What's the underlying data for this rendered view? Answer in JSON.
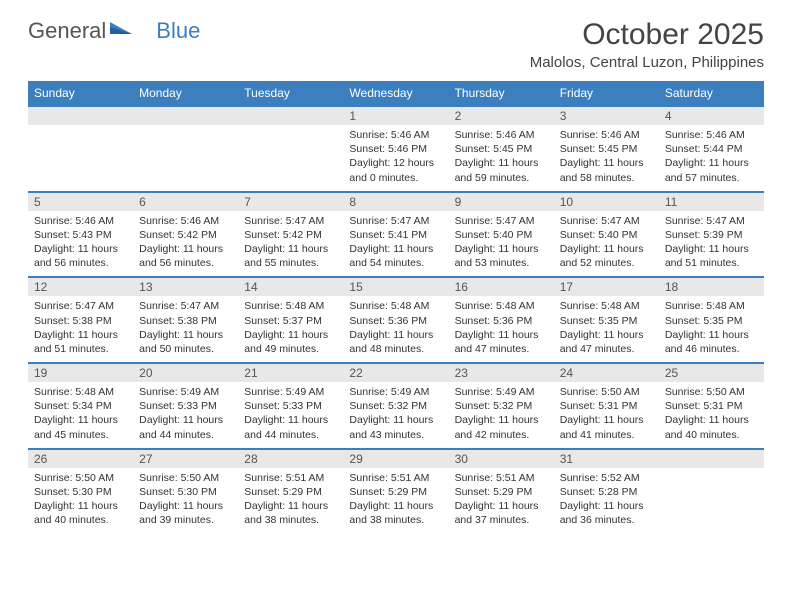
{
  "brand": {
    "word1": "General",
    "word2": "Blue"
  },
  "title": "October 2025",
  "location": "Malolos, Central Luzon, Philippines",
  "colors": {
    "accent": "#3b7fbf",
    "header_text": "#ffffff",
    "daynum_bg": "#e8e8e8",
    "text": "#333333",
    "muted": "#555555",
    "background": "#ffffff"
  },
  "daynames": [
    "Sunday",
    "Monday",
    "Tuesday",
    "Wednesday",
    "Thursday",
    "Friday",
    "Saturday"
  ],
  "weeks": [
    [
      {
        "n": "",
        "lines": []
      },
      {
        "n": "",
        "lines": []
      },
      {
        "n": "",
        "lines": []
      },
      {
        "n": "1",
        "lines": [
          "Sunrise: 5:46 AM",
          "Sunset: 5:46 PM",
          "Daylight: 12 hours",
          "and 0 minutes."
        ]
      },
      {
        "n": "2",
        "lines": [
          "Sunrise: 5:46 AM",
          "Sunset: 5:45 PM",
          "Daylight: 11 hours",
          "and 59 minutes."
        ]
      },
      {
        "n": "3",
        "lines": [
          "Sunrise: 5:46 AM",
          "Sunset: 5:45 PM",
          "Daylight: 11 hours",
          "and 58 minutes."
        ]
      },
      {
        "n": "4",
        "lines": [
          "Sunrise: 5:46 AM",
          "Sunset: 5:44 PM",
          "Daylight: 11 hours",
          "and 57 minutes."
        ]
      }
    ],
    [
      {
        "n": "5",
        "lines": [
          "Sunrise: 5:46 AM",
          "Sunset: 5:43 PM",
          "Daylight: 11 hours",
          "and 56 minutes."
        ]
      },
      {
        "n": "6",
        "lines": [
          "Sunrise: 5:46 AM",
          "Sunset: 5:42 PM",
          "Daylight: 11 hours",
          "and 56 minutes."
        ]
      },
      {
        "n": "7",
        "lines": [
          "Sunrise: 5:47 AM",
          "Sunset: 5:42 PM",
          "Daylight: 11 hours",
          "and 55 minutes."
        ]
      },
      {
        "n": "8",
        "lines": [
          "Sunrise: 5:47 AM",
          "Sunset: 5:41 PM",
          "Daylight: 11 hours",
          "and 54 minutes."
        ]
      },
      {
        "n": "9",
        "lines": [
          "Sunrise: 5:47 AM",
          "Sunset: 5:40 PM",
          "Daylight: 11 hours",
          "and 53 minutes."
        ]
      },
      {
        "n": "10",
        "lines": [
          "Sunrise: 5:47 AM",
          "Sunset: 5:40 PM",
          "Daylight: 11 hours",
          "and 52 minutes."
        ]
      },
      {
        "n": "11",
        "lines": [
          "Sunrise: 5:47 AM",
          "Sunset: 5:39 PM",
          "Daylight: 11 hours",
          "and 51 minutes."
        ]
      }
    ],
    [
      {
        "n": "12",
        "lines": [
          "Sunrise: 5:47 AM",
          "Sunset: 5:38 PM",
          "Daylight: 11 hours",
          "and 51 minutes."
        ]
      },
      {
        "n": "13",
        "lines": [
          "Sunrise: 5:47 AM",
          "Sunset: 5:38 PM",
          "Daylight: 11 hours",
          "and 50 minutes."
        ]
      },
      {
        "n": "14",
        "lines": [
          "Sunrise: 5:48 AM",
          "Sunset: 5:37 PM",
          "Daylight: 11 hours",
          "and 49 minutes."
        ]
      },
      {
        "n": "15",
        "lines": [
          "Sunrise: 5:48 AM",
          "Sunset: 5:36 PM",
          "Daylight: 11 hours",
          "and 48 minutes."
        ]
      },
      {
        "n": "16",
        "lines": [
          "Sunrise: 5:48 AM",
          "Sunset: 5:36 PM",
          "Daylight: 11 hours",
          "and 47 minutes."
        ]
      },
      {
        "n": "17",
        "lines": [
          "Sunrise: 5:48 AM",
          "Sunset: 5:35 PM",
          "Daylight: 11 hours",
          "and 47 minutes."
        ]
      },
      {
        "n": "18",
        "lines": [
          "Sunrise: 5:48 AM",
          "Sunset: 5:35 PM",
          "Daylight: 11 hours",
          "and 46 minutes."
        ]
      }
    ],
    [
      {
        "n": "19",
        "lines": [
          "Sunrise: 5:48 AM",
          "Sunset: 5:34 PM",
          "Daylight: 11 hours",
          "and 45 minutes."
        ]
      },
      {
        "n": "20",
        "lines": [
          "Sunrise: 5:49 AM",
          "Sunset: 5:33 PM",
          "Daylight: 11 hours",
          "and 44 minutes."
        ]
      },
      {
        "n": "21",
        "lines": [
          "Sunrise: 5:49 AM",
          "Sunset: 5:33 PM",
          "Daylight: 11 hours",
          "and 44 minutes."
        ]
      },
      {
        "n": "22",
        "lines": [
          "Sunrise: 5:49 AM",
          "Sunset: 5:32 PM",
          "Daylight: 11 hours",
          "and 43 minutes."
        ]
      },
      {
        "n": "23",
        "lines": [
          "Sunrise: 5:49 AM",
          "Sunset: 5:32 PM",
          "Daylight: 11 hours",
          "and 42 minutes."
        ]
      },
      {
        "n": "24",
        "lines": [
          "Sunrise: 5:50 AM",
          "Sunset: 5:31 PM",
          "Daylight: 11 hours",
          "and 41 minutes."
        ]
      },
      {
        "n": "25",
        "lines": [
          "Sunrise: 5:50 AM",
          "Sunset: 5:31 PM",
          "Daylight: 11 hours",
          "and 40 minutes."
        ]
      }
    ],
    [
      {
        "n": "26",
        "lines": [
          "Sunrise: 5:50 AM",
          "Sunset: 5:30 PM",
          "Daylight: 11 hours",
          "and 40 minutes."
        ]
      },
      {
        "n": "27",
        "lines": [
          "Sunrise: 5:50 AM",
          "Sunset: 5:30 PM",
          "Daylight: 11 hours",
          "and 39 minutes."
        ]
      },
      {
        "n": "28",
        "lines": [
          "Sunrise: 5:51 AM",
          "Sunset: 5:29 PM",
          "Daylight: 11 hours",
          "and 38 minutes."
        ]
      },
      {
        "n": "29",
        "lines": [
          "Sunrise: 5:51 AM",
          "Sunset: 5:29 PM",
          "Daylight: 11 hours",
          "and 38 minutes."
        ]
      },
      {
        "n": "30",
        "lines": [
          "Sunrise: 5:51 AM",
          "Sunset: 5:29 PM",
          "Daylight: 11 hours",
          "and 37 minutes."
        ]
      },
      {
        "n": "31",
        "lines": [
          "Sunrise: 5:52 AM",
          "Sunset: 5:28 PM",
          "Daylight: 11 hours",
          "and 36 minutes."
        ]
      },
      {
        "n": "",
        "lines": []
      }
    ]
  ]
}
